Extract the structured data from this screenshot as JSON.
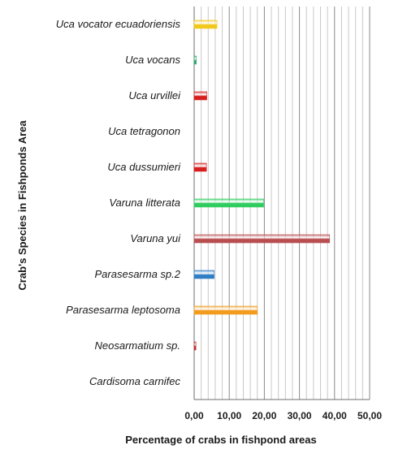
{
  "chart_data": {
    "type": "bar",
    "orientation": "horizontal",
    "categories": [
      "Cardisoma carnifec",
      "Neosarmatium sp.",
      "Parasesarma leptosoma",
      "Parasesarma sp.2",
      "Varuna yui",
      "Varuna litterata",
      "Uca dussumieri",
      "Uca tetragonon",
      "Uca urvillei",
      "Uca vocans",
      "Uca vocator ecuadoriensis"
    ],
    "values": [
      0,
      0.5,
      18,
      5.7,
      38.6,
      19.8,
      3.5,
      0,
      3.6,
      0.6,
      6.5
    ],
    "bar_colors": [
      "#9e9e9e",
      "#c0302e",
      "#f29b1d",
      "#2f7ec4",
      "#b84e50",
      "#2fcc5e",
      "#d61e1e",
      "#9e9e9e",
      "#d61e1e",
      "#2fa86a",
      "#f2c81d"
    ],
    "xlabel": "Percentage of crabs in fishpond areas",
    "ylabel": "Crab's Species in Fishponds Area",
    "xlim": [
      0,
      50
    ],
    "xticks": [
      "0,00",
      "10,00",
      "20,00",
      "30,00",
      "40,00",
      "50,00"
    ],
    "grid": "vertical lines",
    "legend": "none"
  }
}
